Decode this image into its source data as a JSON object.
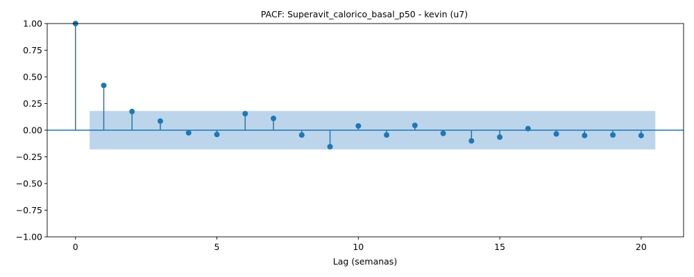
{
  "chart_data": {
    "type": "scatter",
    "subtype": "stem",
    "title": "PACF: Superavit_calorico_basal_p50 - kevin (u7)",
    "xlabel": "Lag (semanas)",
    "ylabel": "",
    "xlim": [
      -1,
      21.5
    ],
    "ylim": [
      -1.0,
      1.0
    ],
    "x_ticks": [
      0,
      5,
      10,
      15,
      20
    ],
    "x_tick_labels": [
      "0",
      "5",
      "10",
      "15",
      "20"
    ],
    "y_ticks": [
      -1.0,
      -0.75,
      -0.5,
      -0.25,
      0.0,
      0.25,
      0.5,
      0.75,
      1.0
    ],
    "y_tick_labels": [
      "−1.00",
      "−0.75",
      "−0.50",
      "−0.25",
      "0.00",
      "0.25",
      "0.50",
      "0.75",
      "1.00"
    ],
    "grid": false,
    "lags": [
      0,
      1,
      2,
      3,
      4,
      5,
      6,
      7,
      8,
      9,
      10,
      11,
      12,
      13,
      14,
      15,
      16,
      17,
      18,
      19,
      20
    ],
    "values": [
      1.0,
      0.42,
      0.175,
      0.085,
      -0.025,
      -0.04,
      0.155,
      0.11,
      -0.045,
      -0.155,
      0.04,
      -0.045,
      0.045,
      -0.03,
      -0.1,
      -0.065,
      0.015,
      -0.035,
      -0.05,
      -0.045,
      -0.05
    ],
    "confidence_band": {
      "x_range": [
        0.5,
        20.5
      ],
      "lower": -0.18,
      "upper": 0.18
    },
    "colors": {
      "stem": "#1f77b4",
      "band": "#bcd5eb"
    }
  }
}
